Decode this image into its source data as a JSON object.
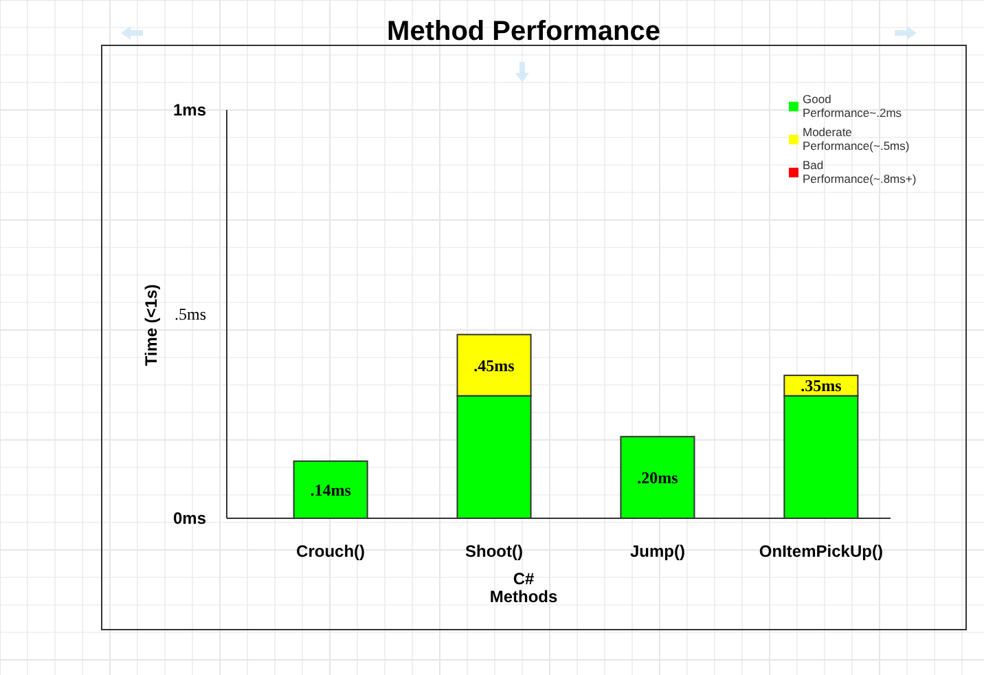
{
  "chart_data": {
    "type": "bar",
    "title": "Method Performance",
    "xlabel": "C#\nMethods",
    "ylabel": "Time (<1s)",
    "categories": [
      "Crouch()",
      "Shoot()",
      "Jump()",
      "OnItemPickUp()"
    ],
    "stacked": true,
    "series": [
      {
        "name": "Good Performance~.2ms",
        "color": "#00ff00",
        "values": [
          0.14,
          0.3,
          0.2,
          0.3
        ]
      },
      {
        "name": "Moderate Performance(~.5ms)",
        "color": "#ffff00",
        "values": [
          null,
          0.15,
          null,
          0.05
        ]
      },
      {
        "name": "Bad Performance(~.8ms+)",
        "color": "#ff0000",
        "values": [
          null,
          null,
          null,
          null
        ]
      }
    ],
    "totals": [
      ".14ms",
      ".45ms",
      ".20ms",
      ".35ms"
    ],
    "ylim": [
      0,
      1
    ],
    "yticks": [
      {
        "value": 0,
        "label": "0ms"
      },
      {
        "value": 0.5,
        "label": ".5ms"
      },
      {
        "value": 1,
        "label": "1ms"
      }
    ],
    "legend": "top right",
    "grid": true
  }
}
